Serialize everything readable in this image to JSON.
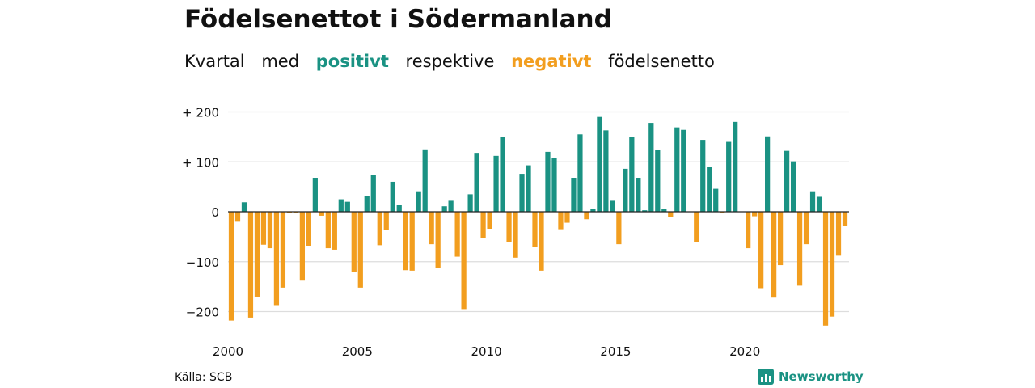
{
  "title": "Födelsenettot i Södermanland",
  "subtitle": {
    "w1": "Kvartal",
    "w2": "med",
    "positive": "positivt",
    "w3": "respektive",
    "negative": "negativt",
    "w4": "födelsenetto"
  },
  "source": "Källa: SCB",
  "brand": "Newsworthy",
  "colors": {
    "positive": "#1a9283",
    "negative": "#f29e1f",
    "grid": "#dddddd",
    "zero": "#222222"
  },
  "chart_data": {
    "type": "bar",
    "xlabel": "",
    "ylabel": "",
    "ylim": [
      -230,
      200
    ],
    "yticks": [
      {
        "value": 200,
        "label": "+ 200"
      },
      {
        "value": 100,
        "label": "+ 100"
      },
      {
        "value": 0,
        "label": "0"
      },
      {
        "value": -100,
        "label": "−100"
      },
      {
        "value": -200,
        "label": "−200"
      }
    ],
    "xticks": [
      "2000",
      "2005",
      "2010",
      "2015",
      "2020"
    ],
    "start_year": 2000,
    "grid": true,
    "values": [
      -218,
      -20,
      19,
      -212,
      -170,
      -66,
      -73,
      -187,
      -152,
      -2,
      -2,
      -138,
      -68,
      68,
      -8,
      -73,
      -76,
      25,
      20,
      -120,
      -152,
      31,
      73,
      -67,
      -37,
      60,
      13,
      -117,
      -118,
      41,
      125,
      -65,
      -112,
      11,
      22,
      -90,
      -195,
      35,
      118,
      -52,
      -34,
      112,
      149,
      -60,
      -92,
      76,
      93,
      -70,
      -118,
      120,
      107,
      -35,
      -22,
      68,
      155,
      -15,
      6,
      190,
      163,
      22,
      -65,
      86,
      149,
      68,
      3,
      178,
      124,
      5,
      -10,
      169,
      164,
      0,
      -60,
      144,
      90,
      46,
      -3,
      140,
      180,
      0,
      -73,
      -9,
      -153,
      151,
      -172,
      -107,
      122,
      101,
      -148,
      -65,
      41,
      30,
      -228,
      -210,
      -88,
      -29
    ]
  }
}
